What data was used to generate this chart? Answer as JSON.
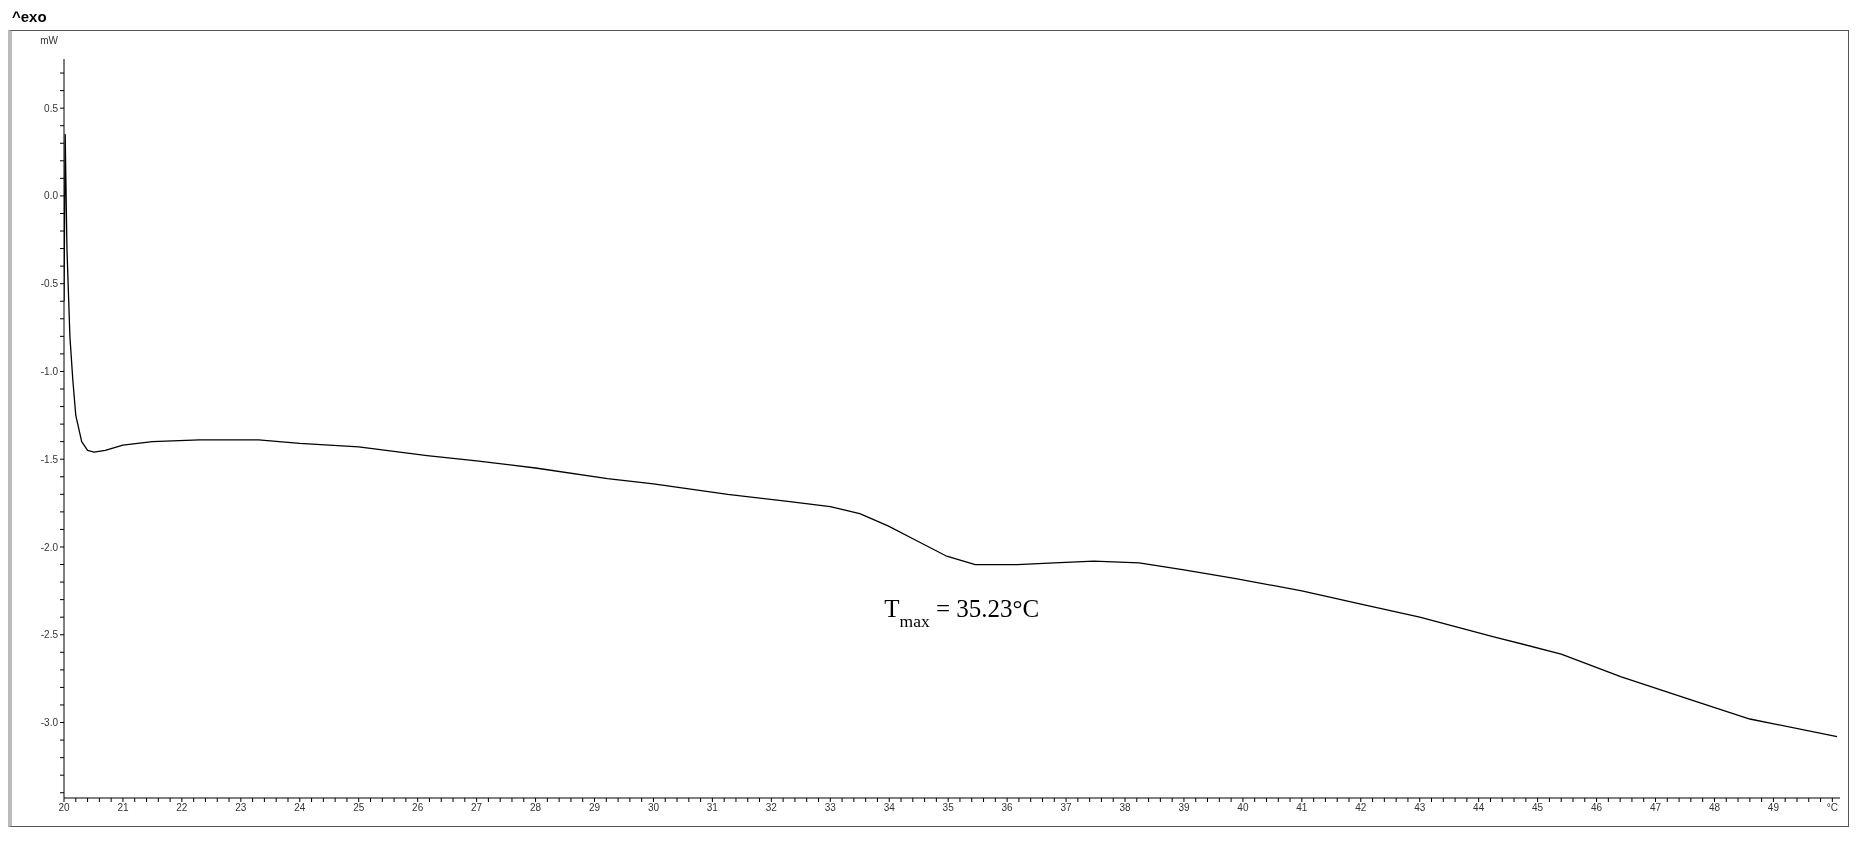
{
  "chart_data": {
    "type": "line",
    "ylabel": "mW",
    "annotations": [
      "^exo",
      {
        "text": "T$_{max}$ = 35.23°C",
        "x": 35.23,
        "y": -2.1
      }
    ],
    "series": [
      {
        "color": "#000000",
        "x": [
          20.0,
          20.02,
          20.05,
          20.1,
          20.15,
          20.2,
          20.3,
          20.4,
          20.51,
          20.7,
          21,
          21.5,
          22.3,
          23.3,
          24,
          25,
          26.16,
          27,
          28,
          29.22,
          30,
          31.26,
          32.28,
          33.0,
          33.5,
          33.98,
          34.5,
          34.96,
          35.46,
          36.17,
          36.8,
          37.47,
          38.24,
          39,
          39.88,
          41,
          42.06,
          43,
          44.24,
          45.4,
          46.42,
          47.5,
          48.6,
          50.08
        ],
        "values": [
          -0.6,
          0.35,
          -0.3,
          -0.8,
          -1.05,
          -1.25,
          -1.4,
          -1.45,
          -1.46,
          -1.45,
          -1.42,
          -1.4,
          -1.39,
          -1.39,
          -1.41,
          -1.43,
          -1.48,
          -1.51,
          -1.55,
          -1.61,
          -1.64,
          -1.7,
          -1.74,
          -1.77,
          -1.81,
          -1.88,
          -1.97,
          -2.05,
          -2.1,
          -2.1,
          -2.09,
          -2.08,
          -2.09,
          -2.13,
          -2.18,
          -2.25,
          -2.33,
          -2.4,
          -2.51,
          -2.61,
          -2.74,
          -2.86,
          -2.98,
          -3.08
        ]
      }
    ],
    "xlim": [
      20,
      50.13
    ],
    "ylim": [
      -3.43,
      0.78
    ],
    "xticks": [
      20,
      {
        "value": 20.2,
        "label": null
      },
      {
        "value": 20.4,
        "label": null
      },
      {
        "value": 20.6,
        "label": null
      },
      {
        "value": 20.8,
        "label": null
      },
      21,
      {
        "value": 21.2,
        "label": null
      },
      {
        "value": 21.4,
        "label": null
      },
      {
        "value": 21.6,
        "label": null
      },
      {
        "value": 21.8,
        "label": null
      },
      22,
      {
        "value": 22.2,
        "label": null
      },
      {
        "value": 22.4,
        "label": null
      },
      {
        "value": 22.6,
        "label": null
      },
      {
        "value": 22.8,
        "label": null
      },
      23,
      {
        "value": 23.2,
        "label": null
      },
      {
        "value": 23.4,
        "label": null
      },
      {
        "value": 23.6,
        "label": null
      },
      {
        "value": 23.8,
        "label": null
      },
      24,
      {
        "value": 24.2,
        "label": null
      },
      {
        "value": 24.4,
        "label": null
      },
      {
        "value": 24.6,
        "label": null
      },
      {
        "value": 24.8,
        "label": null
      },
      25,
      {
        "value": 25.2,
        "label": null
      },
      {
        "value": 25.4,
        "label": null
      },
      {
        "value": 25.6,
        "label": null
      },
      {
        "value": 25.8,
        "label": null
      },
      26,
      {
        "value": 26.2,
        "label": null
      },
      {
        "value": 26.4,
        "label": null
      },
      {
        "value": 26.6,
        "label": null
      },
      {
        "value": 26.8,
        "label": null
      },
      27,
      {
        "value": 27.2,
        "label": null
      },
      {
        "value": 27.4,
        "label": null
      },
      {
        "value": 27.6,
        "label": null
      },
      {
        "value": 27.8,
        "label": null
      },
      28,
      {
        "value": 28.2,
        "label": null
      },
      {
        "value": 28.4,
        "label": null
      },
      {
        "value": 28.6,
        "label": null
      },
      {
        "value": 28.8,
        "label": null
      },
      29,
      {
        "value": 29.2,
        "label": null
      },
      {
        "value": 29.4,
        "label": null
      },
      {
        "value": 29.6,
        "label": null
      },
      {
        "value": 29.8,
        "label": null
      },
      30,
      {
        "value": 30.2,
        "label": null
      },
      {
        "value": 30.4,
        "label": null
      },
      {
        "value": 30.6,
        "label": null
      },
      {
        "value": 30.8,
        "label": null
      },
      31,
      {
        "value": 31.2,
        "label": null
      },
      {
        "value": 31.4,
        "label": null
      },
      {
        "value": 31.6,
        "label": null
      },
      {
        "value": 31.8,
        "label": null
      },
      32,
      {
        "value": 32.2,
        "label": null
      },
      {
        "value": 32.4,
        "label": null
      },
      {
        "value": 32.6,
        "label": null
      },
      {
        "value": 32.8,
        "label": null
      },
      33,
      {
        "value": 33.2,
        "label": null
      },
      {
        "value": 33.4,
        "label": null
      },
      {
        "value": 33.6,
        "label": null
      },
      {
        "value": 33.8,
        "label": null
      },
      34,
      {
        "value": 34.2,
        "label": null
      },
      {
        "value": 34.4,
        "label": null
      },
      {
        "value": 34.6,
        "label": null
      },
      {
        "value": 34.8,
        "label": null
      },
      35,
      {
        "value": 35.2,
        "label": null
      },
      {
        "value": 35.4,
        "label": null
      },
      {
        "value": 35.6,
        "label": null
      },
      {
        "value": 35.8,
        "label": null
      },
      36,
      {
        "value": 36.2,
        "label": null
      },
      {
        "value": 36.4,
        "label": null
      },
      {
        "value": 36.6,
        "label": null
      },
      {
        "value": 36.8,
        "label": null
      },
      37,
      {
        "value": 37.2,
        "label": null
      },
      {
        "value": 37.4,
        "label": null
      },
      {
        "value": 37.6,
        "label": null
      },
      {
        "value": 37.8,
        "label": null
      },
      38,
      {
        "value": 38.2,
        "label": null
      },
      {
        "value": 38.4,
        "label": null
      },
      {
        "value": 38.6,
        "label": null
      },
      {
        "value": 38.8,
        "label": null
      },
      39,
      {
        "value": 39.2,
        "label": null
      },
      {
        "value": 39.4,
        "label": null
      },
      {
        "value": 39.6,
        "label": null
      },
      {
        "value": 39.8,
        "label": null
      },
      40,
      {
        "value": 40.2,
        "label": null
      },
      {
        "value": 40.4,
        "label": null
      },
      {
        "value": 40.6,
        "label": null
      },
      {
        "value": 40.8,
        "label": null
      },
      41,
      {
        "value": 41.2,
        "label": null
      },
      {
        "value": 41.4,
        "label": null
      },
      {
        "value": 41.6,
        "label": null
      },
      {
        "value": 41.8,
        "label": null
      },
      42,
      {
        "value": 42.2,
        "label": null
      },
      {
        "value": 42.4,
        "label": null
      },
      {
        "value": 42.6,
        "label": null
      },
      {
        "value": 42.8,
        "label": null
      },
      43,
      {
        "value": 43.2,
        "label": null
      },
      {
        "value": 43.4,
        "label": null
      },
      {
        "value": 43.6,
        "label": null
      },
      {
        "value": 43.8,
        "label": null
      },
      44,
      {
        "value": 44.2,
        "label": null
      },
      {
        "value": 44.4,
        "label": null
      },
      {
        "value": 44.6,
        "label": null
      },
      {
        "value": 44.8,
        "label": null
      },
      45,
      {
        "value": 45.2,
        "label": null
      },
      {
        "value": 45.4,
        "label": null
      },
      {
        "value": 45.6,
        "label": null
      },
      {
        "value": 45.8,
        "label": null
      },
      46,
      {
        "value": 46.2,
        "label": null
      },
      {
        "value": 46.4,
        "label": null
      },
      {
        "value": 46.6,
        "label": null
      },
      {
        "value": 46.8,
        "label": null
      },
      47,
      {
        "value": 47.2,
        "label": null
      },
      {
        "value": 47.4,
        "label": null
      },
      {
        "value": 47.6,
        "label": null
      },
      {
        "value": 47.8,
        "label": null
      },
      48,
      {
        "value": 48.2,
        "label": null
      },
      {
        "value": 48.4,
        "label": null
      },
      {
        "value": 48.6,
        "label": null
      },
      {
        "value": 48.8,
        "label": null
      },
      49,
      {
        "value": 49.2,
        "label": null
      },
      {
        "value": 49.4,
        "label": null
      },
      {
        "value": 49.6,
        "label": null
      },
      {
        "value": 49.8,
        "label": null
      },
      {
        "value": 50,
        "label": "°C"
      }
    ],
    "yticks": [
      {
        "value": 0.7,
        "label": null
      },
      {
        "value": 0.6,
        "label": null
      },
      0.5,
      {
        "value": 0.4,
        "label": null
      },
      {
        "value": 0.3,
        "label": null
      },
      {
        "value": 0.2,
        "label": null
      },
      {
        "value": 0.1,
        "label": null
      },
      {
        "value": 0,
        "label": "0.0"
      },
      {
        "value": -0.1,
        "label": null
      },
      {
        "value": -0.2,
        "label": null
      },
      {
        "value": -0.3,
        "label": null
      },
      {
        "value": -0.4,
        "label": null
      },
      -0.5,
      {
        "value": -0.6,
        "label": null
      },
      {
        "value": -0.7,
        "label": null
      },
      {
        "value": -0.8,
        "label": null
      },
      {
        "value": -0.9,
        "label": null
      },
      {
        "value": -1,
        "label": "-1.0"
      },
      {
        "value": -1.1,
        "label": null
      },
      {
        "value": -1.2,
        "label": null
      },
      {
        "value": -1.3,
        "label": null
      },
      {
        "value": -1.4,
        "label": null
      },
      -1.5,
      {
        "value": -1.6,
        "label": null
      },
      {
        "value": -1.7,
        "label": null
      },
      {
        "value": -1.8,
        "label": null
      },
      {
        "value": -1.9,
        "label": null
      },
      {
        "value": -2,
        "label": "-2.0"
      },
      {
        "value": -2.1,
        "label": null
      },
      {
        "value": -2.2,
        "label": null
      },
      {
        "value": -2.3,
        "label": null
      },
      {
        "value": -2.4,
        "label": null
      },
      -2.5,
      {
        "value": -2.6,
        "label": null
      },
      {
        "value": -2.7,
        "label": null
      },
      {
        "value": -2.8,
        "label": null
      },
      {
        "value": -2.9,
        "label": null
      },
      {
        "value": -3,
        "label": "-3.0"
      },
      {
        "value": -3.1,
        "label": null
      },
      {
        "value": -3.2,
        "label": null
      },
      {
        "value": -3.3,
        "label": null
      },
      {
        "value": -3.4,
        "label": null
      }
    ],
    "grid": false,
    "legend": false,
    "marker": "none",
    "line_style": "solid"
  }
}
